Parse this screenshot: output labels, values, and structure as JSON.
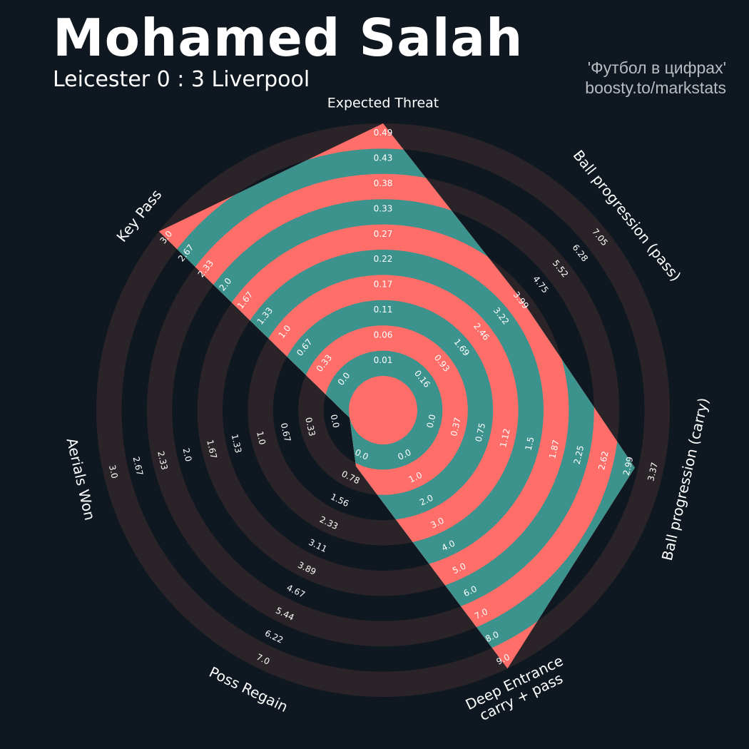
{
  "header": {
    "title": "Mohamed Salah",
    "subtitle": "Leicester 0 : 3 Liverpool",
    "credit_line1": "'Футбол в цифрах'",
    "credit_line2": "boosty.to/markstats"
  },
  "colors": {
    "background": "#0f1820",
    "ring_band": "#2a2429",
    "fill_primary": "#3c928c",
    "fill_alternate": "#ff6e68",
    "label_text": "#ffffff"
  },
  "chart_data": {
    "type": "radar",
    "grid": false,
    "rings": 10,
    "axes": [
      {
        "name": "Expected Threat",
        "ticks": [
          "0.01",
          "0.06",
          "0.11",
          "0.17",
          "0.22",
          "0.27",
          "0.33",
          "0.38",
          "0.43",
          "0.49"
        ],
        "range": [
          0.0,
          0.49
        ],
        "value": 0.49
      },
      {
        "name": "Ball progression (pass)",
        "ticks": [
          "0.16",
          "0.93",
          "1.69",
          "2.46",
          "3.22",
          "3.99",
          "4.75",
          "5.52",
          "6.28",
          "7.05"
        ],
        "range": [
          0.0,
          7.05
        ],
        "value": 3.99
      },
      {
        "name": "Ball progression (carry)",
        "ticks": [
          "0.0",
          "0.37",
          "0.75",
          "1.12",
          "1.5",
          "1.87",
          "2.25",
          "2.62",
          "2.99",
          "3.37"
        ],
        "range": [
          0.0,
          3.37
        ],
        "value": 2.99
      },
      {
        "name": "Deep Entrance\ncarry + pass",
        "ticks": [
          "0.0",
          "1.0",
          "2.0",
          "3.0",
          "4.0",
          "5.0",
          "6.0",
          "7.0",
          "8.0",
          "9.0"
        ],
        "range": [
          0.0,
          9.0
        ],
        "value": 9.0
      },
      {
        "name": "Poss Regain",
        "ticks": [
          "0.0",
          "0.78",
          "1.56",
          "2.33",
          "3.11",
          "3.89",
          "4.67",
          "5.44",
          "6.22",
          "7.0"
        ],
        "range": [
          0.0,
          7.0
        ],
        "value": 0.78
      },
      {
        "name": "Aerials Won",
        "ticks": [
          "0.0",
          "0.33",
          "0.67",
          "1.0",
          "1.33",
          "1.67",
          "2.0",
          "2.33",
          "2.67",
          "3.0"
        ],
        "range": [
          0.0,
          3.0
        ],
        "value": 0.0
      },
      {
        "name": "Key Pass",
        "ticks": [
          "0.0",
          "0.33",
          "0.67",
          "1.0",
          "1.33",
          "1.67",
          "2.0",
          "2.33",
          "2.67",
          "3.0"
        ],
        "range": [
          0.0,
          3.0
        ],
        "value": 3.0
      }
    ]
  }
}
